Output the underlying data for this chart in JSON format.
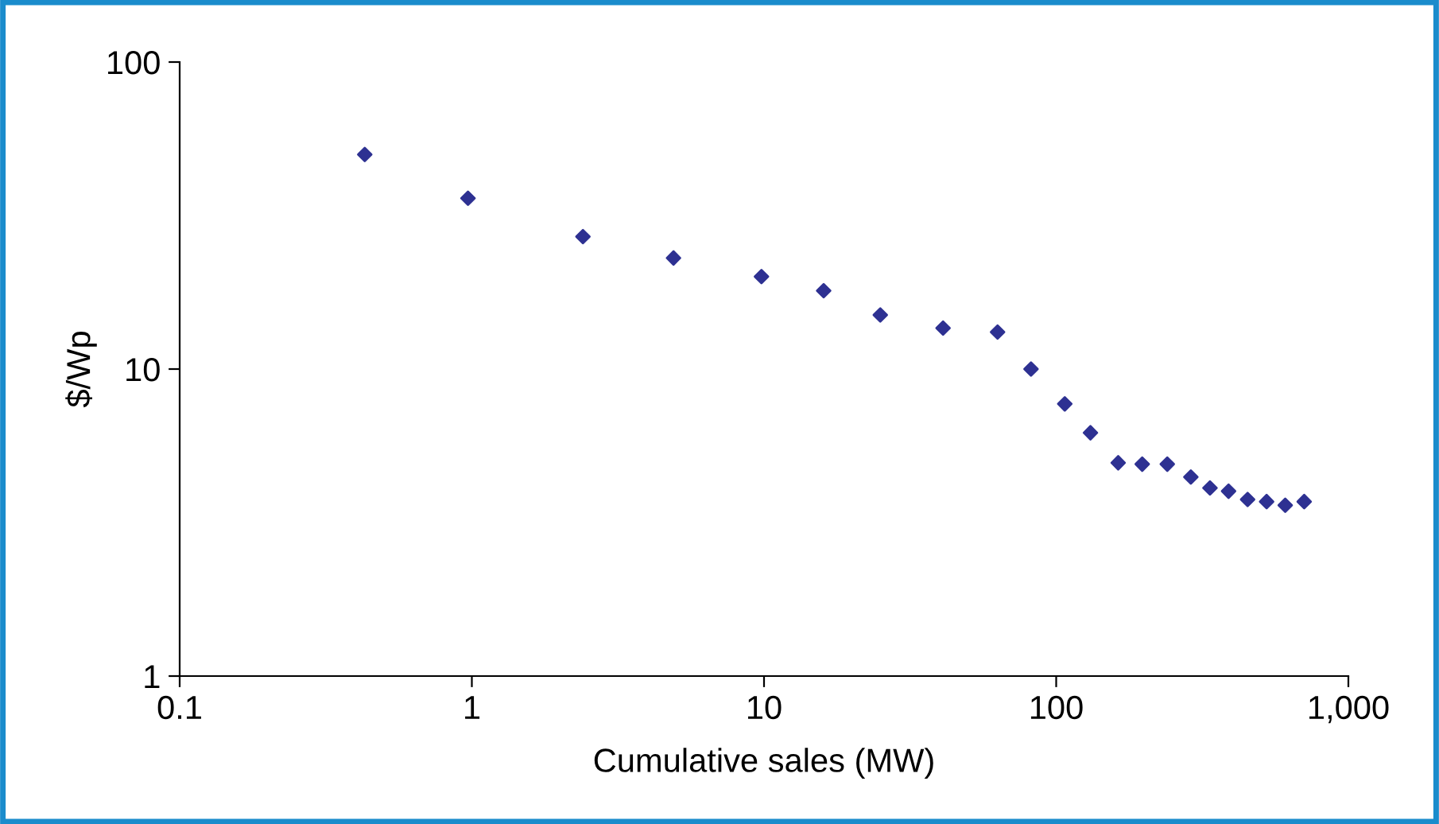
{
  "chart_data": {
    "type": "scatter",
    "xlabel": "Cumulative sales (MW)",
    "ylabel": "$/Wp",
    "log": "xy",
    "marker": "diamond",
    "grid": false,
    "legend": false,
    "x": [
      0.43,
      0.97,
      2.4,
      4.9,
      9.8,
      16,
      25,
      41,
      63,
      82,
      107,
      131,
      163,
      197,
      240,
      289,
      336,
      389,
      452,
      525,
      608,
      706
    ],
    "series": [
      {
        "color": "#2e3192",
        "values": [
          50,
          36,
          27,
          23,
          20,
          18,
          15,
          13.6,
          13.2,
          10,
          7.7,
          6.2,
          4.95,
          4.9,
          4.9,
          4.45,
          4.1,
          4.0,
          3.76,
          3.7,
          3.6,
          3.7
        ]
      }
    ],
    "xlim": [
      0.1,
      1000
    ],
    "xticks": [
      0.1,
      1,
      10,
      100,
      {
        "value": 1000,
        "label": "1,000"
      }
    ],
    "ylim": [
      1,
      100
    ],
    "yticks": [
      1,
      10,
      100
    ]
  }
}
